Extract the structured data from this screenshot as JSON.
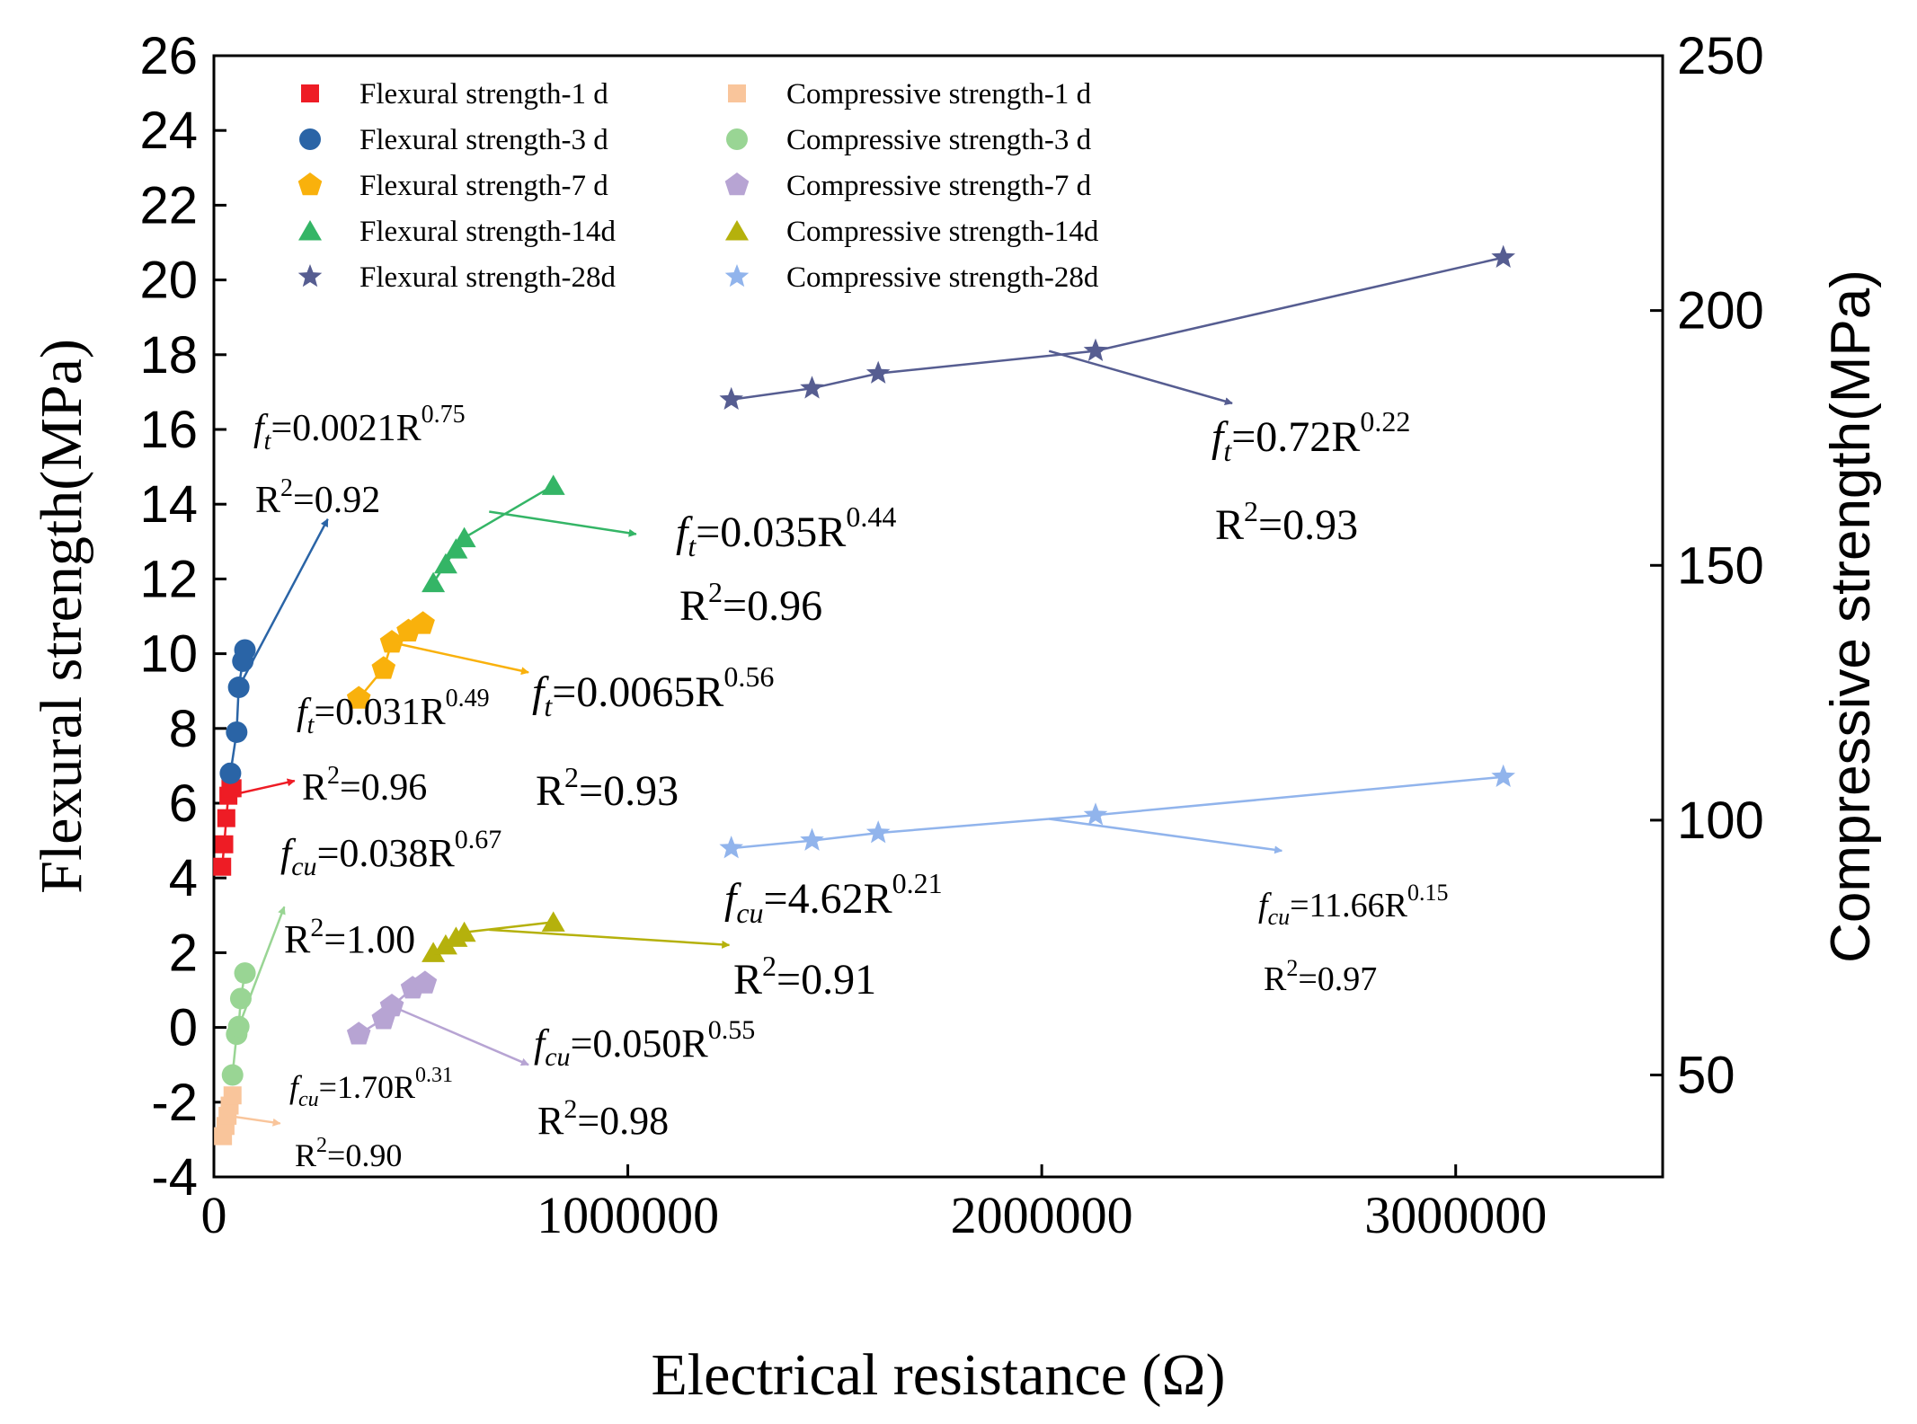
{
  "chart_data": {
    "type": "scatter",
    "xlabel": "Electrical resistance (Ω)",
    "ylabel": "Flexural strength(MPa)",
    "y2label": "Compressive strength(MPa)",
    "xlim": [
      0,
      3500000
    ],
    "ylim": [
      -4,
      26
    ],
    "y2lim": [
      30,
      250
    ],
    "xticks": [
      0,
      1000000,
      2000000,
      3000000
    ],
    "xtick_labels": [
      "0",
      "1000000",
      "2000000",
      "3000000"
    ],
    "yticks": [
      -4,
      -2,
      0,
      2,
      4,
      6,
      8,
      10,
      12,
      14,
      16,
      18,
      20,
      22,
      24,
      26
    ],
    "ytick_labels": [
      "-4",
      "-2",
      "0",
      "2",
      "4",
      "6",
      "8",
      "10",
      "12",
      "14",
      "16",
      "18",
      "20",
      "22",
      "24",
      "26"
    ],
    "y2ticks": [
      50,
      100,
      150,
      200,
      250
    ],
    "y2tick_labels": [
      "50",
      "100",
      "150",
      "200",
      "250"
    ],
    "legend_position": "top-left",
    "grid": false,
    "series": [
      {
        "name": "Flexural strength-1 d",
        "axis": "left",
        "marker": "square",
        "color": "#ee1c25",
        "x": [
          20000,
          25000,
          30000,
          35000,
          40000,
          45000
        ],
        "y": [
          4.3,
          4.9,
          5.6,
          6.2,
          6.4,
          6.4
        ],
        "fit_end": [
          195000,
          6.6
        ]
      },
      {
        "name": "Flexural strength-3 d",
        "axis": "left",
        "marker": "circle",
        "color": "#2a64a6",
        "x": [
          40000,
          55000,
          60000,
          70000,
          75000
        ],
        "y": [
          6.8,
          7.9,
          9.1,
          9.8,
          10.1
        ],
        "fit_end": [
          275000,
          13.6
        ]
      },
      {
        "name": "Flexural strength-7 d",
        "axis": "left",
        "marker": "pentagon",
        "color": "#f9b10c",
        "x": [
          350000,
          410000,
          430000,
          470000,
          505000
        ],
        "y": [
          8.8,
          9.6,
          10.3,
          10.6,
          10.8
        ],
        "fit_end": [
          760000,
          9.5
        ]
      },
      {
        "name": "Flexural strength-14d",
        "axis": "left",
        "marker": "triangle",
        "color": "#34b566",
        "x": [
          530000,
          560000,
          585000,
          605000,
          820000
        ],
        "y": [
          11.9,
          12.4,
          12.8,
          13.1,
          14.5
        ],
        "fit_end": [
          1020000,
          13.2
        ]
      },
      {
        "name": "Flexural strength-28d",
        "axis": "left",
        "marker": "star",
        "color": "#565d91",
        "x": [
          1250000,
          1445000,
          1605000,
          2130000,
          3115000
        ],
        "y": [
          16.8,
          17.1,
          17.5,
          18.1,
          20.6
        ],
        "fit_end": [
          2460000,
          16.7
        ]
      },
      {
        "name": "Compressive strength-1 d",
        "axis": "right",
        "marker": "square",
        "color": "#f9c59b",
        "x": [
          22000,
          28000,
          33000,
          38000,
          45000
        ],
        "y": [
          38,
          40,
          42,
          44,
          46
        ],
        "fit_end": [
          160000,
          40.5
        ]
      },
      {
        "name": "Compressive strength-3 d",
        "axis": "right",
        "marker": "circle",
        "color": "#99d594",
        "x": [
          45000,
          55000,
          60000,
          65000,
          75000
        ],
        "y": [
          50,
          58,
          59.5,
          65,
          70
        ],
        "fit_end": [
          170000,
          83
        ]
      },
      {
        "name": "Compressive strength-7 d",
        "axis": "right",
        "marker": "pentagon",
        "color": "#b7a4d3",
        "x": [
          350000,
          410000,
          430000,
          480000,
          510000
        ],
        "y": [
          58,
          61,
          63.5,
          67,
          68
        ],
        "fit_end": [
          760000,
          52
        ]
      },
      {
        "name": "Compressive strength-14d",
        "axis": "right",
        "marker": "triangle",
        "color": "#b5b10c",
        "x": [
          530000,
          560000,
          585000,
          605000,
          820000
        ],
        "y": [
          74,
          75.5,
          77,
          78,
          80
        ],
        "fit_end": [
          1245000,
          75.5
        ]
      },
      {
        "name": "Compressive strength-28d",
        "axis": "right",
        "marker": "star",
        "color": "#91b4ec",
        "x": [
          1250000,
          1445000,
          1605000,
          2130000,
          3115000
        ],
        "y": [
          94.5,
          96,
          97.5,
          101,
          108.5
        ],
        "fit_end": [
          2580000,
          94
        ]
      }
    ],
    "fits": [
      {
        "series": "Flexural strength-1 d",
        "a": 0.031,
        "b": 0.49,
        "r2": "0.96"
      },
      {
        "series": "Flexural strength-3 d",
        "a": 0.0021,
        "b": 0.75,
        "r2": "0.92"
      },
      {
        "series": "Flexural strength-7 d",
        "a": 0.0065,
        "b": 0.56,
        "r2": "0.93"
      },
      {
        "series": "Flexural strength-14d",
        "a": 0.035,
        "b": 0.44,
        "r2": "0.96"
      },
      {
        "series": "Flexural strength-28d",
        "a": 0.72,
        "b": 0.22,
        "r2": "0.93"
      },
      {
        "series": "Compressive strength-1 d",
        "a": 1.7,
        "b": 0.31,
        "r2": "0.90"
      },
      {
        "series": "Compressive strength-3 d",
        "a": 0.038,
        "b": 0.67,
        "r2": "1.00"
      },
      {
        "series": "Compressive strength-7 d",
        "a": 0.05,
        "b": 0.55,
        "r2": "0.98"
      },
      {
        "series": "Compressive strength-14d",
        "a": 4.62,
        "b": 0.21,
        "r2": "0.91"
      },
      {
        "series": "Compressive strength-28d",
        "a": 11.66,
        "b": 0.15,
        "r2": "0.97"
      }
    ],
    "annotations": [
      {
        "id": "ft-3d",
        "sym": "f",
        "sub": "t",
        "coef": "=0.0021R",
        "exp": "0.75",
        "r2_label": "R",
        "r2_sup": "2",
        "r2_value": "=0.92"
      },
      {
        "id": "ft-1d",
        "sym": "f",
        "sub": "t",
        "coef": "=0.031R",
        "exp": "0.49",
        "r2_label": "R",
        "r2_sup": "2",
        "r2_value": "=0.96"
      },
      {
        "id": "ft-7d",
        "sym": "f",
        "sub": "t",
        "coef": "=0.0065R",
        "exp": "0.56",
        "r2_label": "R",
        "r2_sup": "2",
        "r2_value": "=0.93"
      },
      {
        "id": "ft-14d",
        "sym": "f",
        "sub": "t",
        "coef": "=0.035R",
        "exp": "0.44",
        "r2_label": "R",
        "r2_sup": "2",
        "r2_value": "=0.96"
      },
      {
        "id": "ft-28d",
        "sym": "f",
        "sub": "t",
        "coef": "=0.72R",
        "exp": "0.22",
        "r2_label": "R",
        "r2_sup": "2",
        "r2_value": "=0.93"
      },
      {
        "id": "fcu-3d",
        "sym": "f",
        "sub": "cu",
        "coef": "=0.038R",
        "exp": "0.67",
        "r2_label": "R",
        "r2_sup": "2",
        "r2_value": "=1.00"
      },
      {
        "id": "fcu-1d",
        "sym": "f",
        "sub": "cu",
        "coef": "=1.70R",
        "exp": "0.31",
        "r2_label": "R",
        "r2_sup": "2",
        "r2_value": "=0.90"
      },
      {
        "id": "fcu-7d",
        "sym": "f",
        "sub": "cu",
        "coef": "=0.050R",
        "exp": "0.55",
        "r2_label": "R",
        "r2_sup": "2",
        "r2_value": "=0.98"
      },
      {
        "id": "fcu-14d",
        "sym": "f",
        "sub": "cu",
        "coef": "=4.62R",
        "exp": "0.21",
        "r2_label": "R",
        "r2_sup": "2",
        "r2_value": "=0.91"
      },
      {
        "id": "fcu-28d",
        "sym": "f",
        "sub": "cu",
        "coef": "=11.66R",
        "exp": "0.15",
        "r2_label": "R",
        "r2_sup": "2",
        "r2_value": "=0.97"
      }
    ]
  }
}
